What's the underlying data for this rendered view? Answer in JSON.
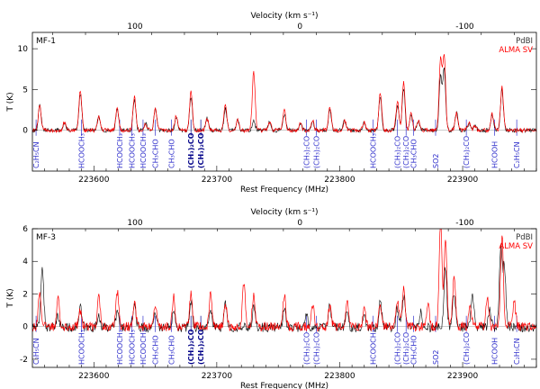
{
  "chart_data": [
    {
      "type": "line",
      "panel_label": "MF-1",
      "xlabel": "Rest Frequency (MHz)",
      "top_xlabel": "Velocity (km s⁻¹)",
      "ylabel": "T (K)",
      "xlim": [
        223550,
        223960
      ],
      "ylim": [
        -5,
        12
      ],
      "x_ticks": [
        223600,
        223700,
        223800,
        223900
      ],
      "y_ticks": [
        0,
        5,
        10
      ],
      "top_ticks": [
        200,
        100,
        0,
        -100,
        -200
      ],
      "legend": {
        "position": "top-right",
        "entries": [
          "PdBI",
          "ALMA SV"
        ]
      },
      "series": [
        {
          "name": "PdBI",
          "color": "#000000",
          "peaks": [
            [
              223556,
              3.0
            ],
            [
              223576,
              0.9
            ],
            [
              223589,
              4.5
            ],
            [
              223604,
              1.6
            ],
            [
              223619,
              2.7
            ],
            [
              223633,
              3.8
            ],
            [
              223642,
              0.8
            ],
            [
              223650,
              2.5
            ],
            [
              223667,
              1.5
            ],
            [
              223679,
              4.2
            ],
            [
              223692,
              1.5
            ],
            [
              223707,
              2.6
            ],
            [
              223717,
              1.2
            ],
            [
              223730,
              1.2
            ],
            [
              223743,
              1.0
            ],
            [
              223755,
              2.0
            ],
            [
              223768,
              0.8
            ],
            [
              223778,
              1.1
            ],
            [
              223792,
              2.5
            ],
            [
              223804,
              1.2
            ],
            [
              223820,
              1.0
            ],
            [
              223833,
              4.2
            ],
            [
              223847,
              3.1
            ],
            [
              223852,
              5.2
            ],
            [
              223858,
              2.0
            ],
            [
              223864,
              1.2
            ],
            [
              223882,
              6.5
            ],
            [
              223885,
              7.4
            ],
            [
              223895,
              2.2
            ],
            [
              223905,
              0.7
            ],
            [
              223910,
              0.6
            ],
            [
              223924,
              2.0
            ],
            [
              223932,
              5.0
            ]
          ]
        },
        {
          "name": "ALMA SV",
          "color": "#ff0000",
          "peaks": [
            [
              223556,
              3.0
            ],
            [
              223576,
              0.9
            ],
            [
              223589,
              4.9
            ],
            [
              223604,
              1.6
            ],
            [
              223619,
              2.7
            ],
            [
              223633,
              4.2
            ],
            [
              223642,
              0.8
            ],
            [
              223650,
              2.8
            ],
            [
              223667,
              1.8
            ],
            [
              223679,
              4.7
            ],
            [
              223692,
              1.5
            ],
            [
              223707,
              3.2
            ],
            [
              223717,
              1.2
            ],
            [
              223730,
              7.3
            ],
            [
              223743,
              1.0
            ],
            [
              223755,
              2.4
            ],
            [
              223768,
              0.8
            ],
            [
              223778,
              1.1
            ],
            [
              223792,
              2.8
            ],
            [
              223804,
              1.2
            ],
            [
              223820,
              1.0
            ],
            [
              223833,
              4.7
            ],
            [
              223847,
              3.6
            ],
            [
              223852,
              6.0
            ],
            [
              223858,
              2.0
            ],
            [
              223864,
              1.2
            ],
            [
              223882,
              8.8
            ],
            [
              223885,
              9.2
            ],
            [
              223895,
              2.2
            ],
            [
              223905,
              0.9
            ],
            [
              223910,
              0.6
            ],
            [
              223924,
              2.0
            ],
            [
              223932,
              5.5
            ]
          ]
        }
      ],
      "line_markers": [
        {
          "freq": 223553,
          "label": "C₂H₅CN",
          "color": "#3333cc",
          "bold": false
        },
        {
          "freq": 223590,
          "label": "HCOOCH₃",
          "color": "#3333cc",
          "bold": false
        },
        {
          "freq": 223621,
          "label": "HCOOCH₃",
          "color": "#3333cc",
          "bold": false
        },
        {
          "freq": 223631,
          "label": "HCOOCH₃",
          "color": "#3333cc",
          "bold": false
        },
        {
          "freq": 223640,
          "label": "HCOOCH₃",
          "color": "#3333cc",
          "bold": false
        },
        {
          "freq": 223650,
          "label": "CH₃CHO",
          "color": "#3333cc",
          "bold": false
        },
        {
          "freq": 223663,
          "label": "CH₃CHO",
          "color": "#3333cc",
          "bold": false
        },
        {
          "freq": 223679,
          "label": "(CH₃)₂CO",
          "color": "#000088",
          "bold": true
        },
        {
          "freq": 223687,
          "label": "(CH₃)₂CO",
          "color": "#000088",
          "bold": true
        },
        {
          "freq": 223773,
          "label": "(CH₃)₂CO",
          "color": "#3333cc",
          "bold": false
        },
        {
          "freq": 223781,
          "label": "(CH₃)₂CO",
          "color": "#3333cc",
          "bold": false
        },
        {
          "freq": 223827,
          "label": "HCOOCH₃",
          "color": "#3333cc",
          "bold": false
        },
        {
          "freq": 223847,
          "label": "(CH₃)₂CO",
          "color": "#3333cc",
          "bold": false
        },
        {
          "freq": 223854,
          "label": "(CH₃)₂CO",
          "color": "#3333cc",
          "bold": false
        },
        {
          "freq": 223860,
          "label": "CH₃CHO",
          "color": "#3333cc",
          "bold": false
        },
        {
          "freq": 223878,
          "label": "SO2",
          "color": "#3333cc",
          "bold": false
        },
        {
          "freq": 223903,
          "label": "(CH₃)₂CO",
          "color": "#3333cc",
          "bold": false
        },
        {
          "freq": 223926,
          "label": "HCOOH",
          "color": "#3333cc",
          "bold": false
        },
        {
          "freq": 223944,
          "label": "C₂H₅CN",
          "color": "#3333cc",
          "bold": false
        }
      ]
    },
    {
      "type": "line",
      "panel_label": "MF-3",
      "xlabel": "Rest Frequency (MHz)",
      "top_xlabel": "Velocity (km s⁻¹)",
      "ylabel": "T (K)",
      "xlim": [
        223550,
        223960
      ],
      "ylim": [
        -2.5,
        6
      ],
      "x_ticks": [
        223600,
        223700,
        223800,
        223900
      ],
      "y_ticks": [
        -2,
        0,
        2,
        4,
        6
      ],
      "top_ticks": [
        200,
        100,
        0,
        -100,
        -200
      ],
      "legend": {
        "position": "top-right",
        "entries": [
          "PdBI",
          "ALMA SV"
        ]
      },
      "series": [
        {
          "name": "PdBI",
          "color": "#000000",
          "peaks": [
            [
              223558,
              3.8
            ],
            [
              223571,
              0.7
            ],
            [
              223589,
              1.2
            ],
            [
              223604,
              0.8
            ],
            [
              223619,
              1.0
            ],
            [
              223633,
              1.5
            ],
            [
              223650,
              1.0
            ],
            [
              223665,
              1.2
            ],
            [
              223679,
              1.6
            ],
            [
              223695,
              1.0
            ],
            [
              223707,
              1.4
            ],
            [
              223730,
              1.2
            ],
            [
              223755,
              1.2
            ],
            [
              223773,
              0.7
            ],
            [
              223792,
              1.3
            ],
            [
              223806,
              0.9
            ],
            [
              223820,
              0.8
            ],
            [
              223833,
              1.6
            ],
            [
              223847,
              1.2
            ],
            [
              223852,
              2.0
            ],
            [
              223866,
              0.9
            ],
            [
              223886,
              3.8
            ],
            [
              223893,
              2.1
            ],
            [
              223908,
              2.0
            ],
            [
              223922,
              1.0
            ],
            [
              223931,
              5.0
            ],
            [
              223934,
              3.7
            ]
          ]
        },
        {
          "name": "ALMA SV",
          "color": "#ff0000",
          "peaks": [
            [
              223556,
              2.2
            ],
            [
              223571,
              1.9
            ],
            [
              223589,
              1.0
            ],
            [
              223604,
              2.0
            ],
            [
              223619,
              2.2
            ],
            [
              223633,
              1.5
            ],
            [
              223650,
              1.2
            ],
            [
              223665,
              1.8
            ],
            [
              223679,
              2.0
            ],
            [
              223695,
              2.0
            ],
            [
              223707,
              1.4
            ],
            [
              223722,
              2.7
            ],
            [
              223730,
              2.0
            ],
            [
              223755,
              2.0
            ],
            [
              223778,
              1.3
            ],
            [
              223792,
              1.3
            ],
            [
              223806,
              1.5
            ],
            [
              223820,
              1.0
            ],
            [
              223833,
              1.4
            ],
            [
              223847,
              1.7
            ],
            [
              223852,
              2.5
            ],
            [
              223872,
              1.2
            ],
            [
              223882,
              6.5
            ],
            [
              223886,
              5.5
            ],
            [
              223893,
              3.0
            ],
            [
              223906,
              1.2
            ],
            [
              223920,
              1.8
            ],
            [
              223932,
              5.8
            ],
            [
              223942,
              1.5
            ]
          ]
        }
      ],
      "line_markers": [
        {
          "freq": 223553,
          "label": "C₂H₅CN",
          "color": "#3333cc",
          "bold": false
        },
        {
          "freq": 223590,
          "label": "HCOOCH₃",
          "color": "#3333cc",
          "bold": false
        },
        {
          "freq": 223621,
          "label": "HCOOCH₃",
          "color": "#3333cc",
          "bold": false
        },
        {
          "freq": 223631,
          "label": "HCOOCH₃",
          "color": "#3333cc",
          "bold": false
        },
        {
          "freq": 223640,
          "label": "HCOOCH₃",
          "color": "#3333cc",
          "bold": false
        },
        {
          "freq": 223650,
          "label": "CH₃CHO",
          "color": "#3333cc",
          "bold": false
        },
        {
          "freq": 223663,
          "label": "CH₃CHO",
          "color": "#3333cc",
          "bold": false
        },
        {
          "freq": 223679,
          "label": "(CH₃)₂CO",
          "color": "#000088",
          "bold": true
        },
        {
          "freq": 223687,
          "label": "(CH₃)₂CO",
          "color": "#000088",
          "bold": true
        },
        {
          "freq": 223773,
          "label": "(CH₃)₂CO",
          "color": "#3333cc",
          "bold": false
        },
        {
          "freq": 223781,
          "label": "(CH₃)₂CO",
          "color": "#3333cc",
          "bold": false
        },
        {
          "freq": 223827,
          "label": "HCOOCH₃",
          "color": "#3333cc",
          "bold": false
        },
        {
          "freq": 223847,
          "label": "(CH₃)₂CO",
          "color": "#3333cc",
          "bold": false
        },
        {
          "freq": 223854,
          "label": "(CH₃)₂CO",
          "color": "#3333cc",
          "bold": false
        },
        {
          "freq": 223860,
          "label": "CH₃CHO",
          "color": "#3333cc",
          "bold": false
        },
        {
          "freq": 223878,
          "label": "SO2",
          "color": "#3333cc",
          "bold": false
        },
        {
          "freq": 223903,
          "label": "(CH₃)₂CO",
          "color": "#3333cc",
          "bold": false
        },
        {
          "freq": 223926,
          "label": "HCOOH",
          "color": "#3333cc",
          "bold": false
        },
        {
          "freq": 223944,
          "label": "C₂H₅CN",
          "color": "#3333cc",
          "bold": false
        }
      ]
    }
  ]
}
